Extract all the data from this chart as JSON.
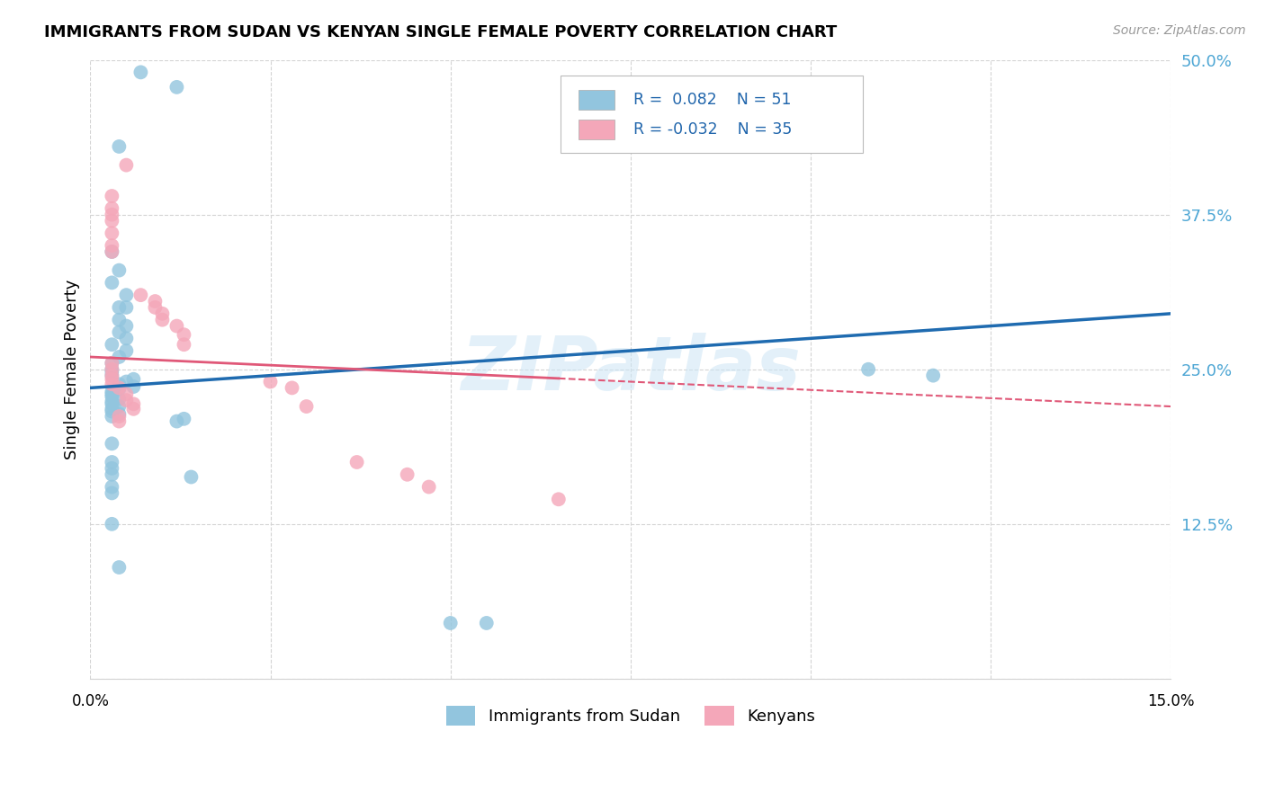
{
  "title": "IMMIGRANTS FROM SUDAN VS KENYAN SINGLE FEMALE POVERTY CORRELATION CHART",
  "source": "Source: ZipAtlas.com",
  "ylabel": "Single Female Poverty",
  "xlim": [
    0.0,
    0.15
  ],
  "ylim": [
    0.0,
    0.5
  ],
  "yticks": [
    0.0,
    0.125,
    0.25,
    0.375,
    0.5
  ],
  "ytick_labels": [
    "",
    "12.5%",
    "25.0%",
    "37.5%",
    "50.0%"
  ],
  "legend_label1": "Immigrants from Sudan",
  "legend_label2": "Kenyans",
  "r1": "0.082",
  "n1": "51",
  "r2": "-0.032",
  "n2": "35",
  "blue_color": "#92c5de",
  "pink_color": "#f4a7b9",
  "blue_line_color": "#1f6bb0",
  "pink_line_color": "#e05878",
  "watermark": "ZIPatlas",
  "blue_x": [
    0.007,
    0.012,
    0.004,
    0.003,
    0.004,
    0.003,
    0.005,
    0.004,
    0.004,
    0.005,
    0.004,
    0.005,
    0.003,
    0.005,
    0.004,
    0.003,
    0.003,
    0.003,
    0.005,
    0.003,
    0.006,
    0.005,
    0.004,
    0.006,
    0.004,
    0.003,
    0.003,
    0.003,
    0.004,
    0.003,
    0.003,
    0.004,
    0.003,
    0.003,
    0.004,
    0.003,
    0.013,
    0.012,
    0.003,
    0.003,
    0.003,
    0.003,
    0.014,
    0.003,
    0.003,
    0.108,
    0.117,
    0.003,
    0.004,
    0.05,
    0.055
  ],
  "blue_y": [
    0.49,
    0.478,
    0.43,
    0.345,
    0.33,
    0.32,
    0.31,
    0.3,
    0.29,
    0.285,
    0.28,
    0.275,
    0.27,
    0.265,
    0.26,
    0.255,
    0.25,
    0.248,
    0.3,
    0.245,
    0.242,
    0.24,
    0.238,
    0.236,
    0.234,
    0.232,
    0.23,
    0.228,
    0.226,
    0.224,
    0.222,
    0.22,
    0.218,
    0.216,
    0.214,
    0.212,
    0.21,
    0.208,
    0.19,
    0.175,
    0.17,
    0.165,
    0.163,
    0.155,
    0.15,
    0.25,
    0.245,
    0.125,
    0.09,
    0.045,
    0.045
  ],
  "pink_x": [
    0.003,
    0.003,
    0.003,
    0.003,
    0.003,
    0.004,
    0.005,
    0.005,
    0.006,
    0.006,
    0.004,
    0.004,
    0.003,
    0.003,
    0.003,
    0.003,
    0.003,
    0.003,
    0.003,
    0.005,
    0.007,
    0.009,
    0.009,
    0.01,
    0.01,
    0.012,
    0.013,
    0.013,
    0.025,
    0.028,
    0.03,
    0.037,
    0.044,
    0.047,
    0.065
  ],
  "pink_y": [
    0.255,
    0.25,
    0.245,
    0.242,
    0.238,
    0.235,
    0.23,
    0.225,
    0.222,
    0.218,
    0.212,
    0.208,
    0.39,
    0.38,
    0.375,
    0.37,
    0.36,
    0.35,
    0.345,
    0.415,
    0.31,
    0.305,
    0.3,
    0.295,
    0.29,
    0.285,
    0.278,
    0.27,
    0.24,
    0.235,
    0.22,
    0.175,
    0.165,
    0.155,
    0.145
  ]
}
